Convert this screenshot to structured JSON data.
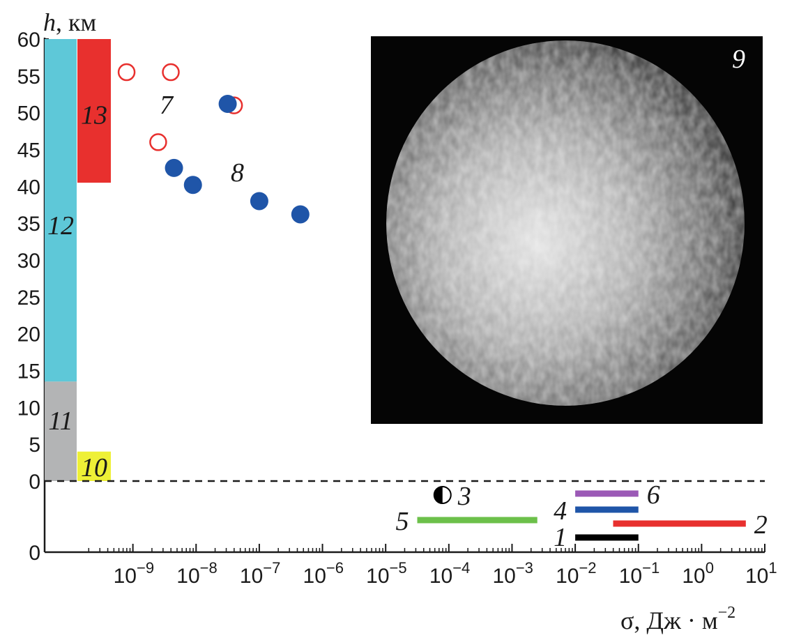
{
  "chart_data": {
    "type": "scatter",
    "y_axis": {
      "title_var": "h",
      "title_unit": ", км",
      "range": [
        0,
        60
      ],
      "ticks": [
        "60",
        "55",
        "50",
        "45",
        "40",
        "35",
        "30",
        "25",
        "20",
        "15",
        "10",
        "5",
        "0",
        "0"
      ]
    },
    "x_axis": {
      "title_var": "σ",
      "title_unit": ", Дж · м",
      "title_exp": "−2",
      "scale": "log",
      "range_log10": [
        -10,
        1
      ],
      "ticks": [
        {
          "log": -9,
          "base": "10",
          "exp": "−9"
        },
        {
          "log": -8,
          "base": "10",
          "exp": "−8"
        },
        {
          "log": -7,
          "base": "10",
          "exp": "−7"
        },
        {
          "log": -6,
          "base": "10",
          "exp": "−6"
        },
        {
          "log": -5,
          "base": "10",
          "exp": "−5"
        },
        {
          "log": -4,
          "base": "10",
          "exp": "−4"
        },
        {
          "log": -3,
          "base": "10",
          "exp": "−3"
        },
        {
          "log": -2,
          "base": "10",
          "exp": "−2"
        },
        {
          "log": -1,
          "base": "10",
          "exp": "−1"
        },
        {
          "log": 0,
          "base": "10",
          "exp": "0"
        },
        {
          "log": 1,
          "base": "10",
          "exp": "1"
        }
      ]
    },
    "altitude_bands": [
      {
        "label": "12",
        "h_from": 13.5,
        "h_to": 60,
        "color": "#5ec8d8"
      },
      {
        "label": "11",
        "h_from": 0,
        "h_to": 13.5,
        "color": "#b3b4b5"
      },
      {
        "label": "13",
        "h_from": 40.5,
        "h_to": 60,
        "color": "#e8302e"
      },
      {
        "label": "10",
        "h_from": 0,
        "h_to": 4,
        "color": "#eef036"
      }
    ],
    "series": [
      {
        "label": "7",
        "marker": "open-circle",
        "color": "#e8302e",
        "points": [
          {
            "sigma_log10": -9.1,
            "h": 55.5
          },
          {
            "sigma_log10": -8.4,
            "h": 55.5
          },
          {
            "sigma_log10": -7.4,
            "h": 51
          },
          {
            "sigma_log10": -8.6,
            "h": 46
          }
        ]
      },
      {
        "label": "8",
        "marker": "filled-circle",
        "color": "#1f55a8",
        "points": [
          {
            "sigma_log10": -7.5,
            "h": 51.2
          },
          {
            "sigma_log10": -8.35,
            "h": 42.5
          },
          {
            "sigma_log10": -8.05,
            "h": 40.2
          },
          {
            "sigma_log10": -7.0,
            "h": 38
          },
          {
            "sigma_log10": -6.35,
            "h": 36.2
          }
        ]
      }
    ],
    "sigma_ranges": [
      {
        "label": "1",
        "from_log10": -2,
        "to_log10": -1,
        "color": "#000000"
      },
      {
        "label": "2",
        "from_log10": -1.4,
        "to_log10": 0.7,
        "color": "#e8302e"
      },
      {
        "label": "4",
        "from_log10": -2,
        "to_log10": -1,
        "color": "#1f55a8"
      },
      {
        "label": "5",
        "from_log10": -4.5,
        "to_log10": -2.6,
        "color": "#6cc04a"
      },
      {
        "label": "6",
        "from_log10": -2,
        "to_log10": -1,
        "color": "#9b59b6"
      }
    ],
    "point_markers": [
      {
        "label": "3",
        "sigma_log10": -4.1,
        "marker": "half-filled-circle",
        "color": "#000000"
      }
    ],
    "inset_image": {
      "label": "9",
      "description": "grayscale image of a planetary disk"
    },
    "zero_line": {
      "style": "dashed"
    }
  }
}
